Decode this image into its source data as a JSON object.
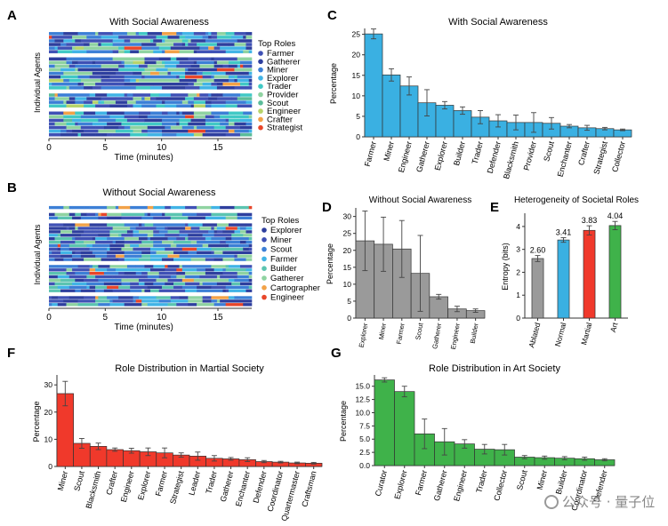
{
  "colors": {
    "social": "#3ab0e2",
    "without": "#9a9a9a",
    "ablated": "#9a9a9a",
    "normal": "#3ab0e2",
    "martial": "#f0392b",
    "art": "#3fb24a"
  },
  "watermark": "公众号 · 量子位",
  "heatmaps": [
    {
      "letter": "A",
      "title": "With Social Awareness",
      "ylabel": "Individual Agents",
      "xlabel": "Time (minutes)",
      "xticks": [
        "0",
        "5",
        "10",
        "15"
      ],
      "legend_title": "Top Roles",
      "roles": [
        {
          "name": "Farmer",
          "color": "#3f51b5"
        },
        {
          "name": "Gatherer",
          "color": "#2e3f9e"
        },
        {
          "name": "Miner",
          "color": "#3c7fd6"
        },
        {
          "name": "Explorer",
          "color": "#41b4e6"
        },
        {
          "name": "Trader",
          "color": "#41c9c5"
        },
        {
          "name": "Provider",
          "color": "#8fd3a1"
        },
        {
          "name": "Scout",
          "color": "#5bbd9a"
        },
        {
          "name": "Engineer",
          "color": "#b7d46a"
        },
        {
          "name": "Crafter",
          "color": "#f2a248"
        },
        {
          "name": "Strategist",
          "color": "#e8462a"
        }
      ]
    },
    {
      "letter": "B",
      "title": "Without Social Awareness",
      "ylabel": "Individual Agents",
      "xlabel": "Time (minutes)",
      "xticks": [
        "0",
        "5",
        "10",
        "15"
      ],
      "legend_title": "Top Roles",
      "roles": [
        {
          "name": "Explorer",
          "color": "#2e3f9e"
        },
        {
          "name": "Miner",
          "color": "#3f51b5"
        },
        {
          "name": "Scout",
          "color": "#3c7fd6"
        },
        {
          "name": "Farmer",
          "color": "#41b4e6"
        },
        {
          "name": "Builder",
          "color": "#5bc4b0"
        },
        {
          "name": "Gatherer",
          "color": "#8fd3a1"
        },
        {
          "name": "Cartographer",
          "color": "#f2a248"
        },
        {
          "name": "Engineer",
          "color": "#e8462a"
        }
      ]
    }
  ],
  "chart_data": [
    {
      "id": "C",
      "type": "bar",
      "title": "With Social Awareness",
      "ylabel": "Percentage",
      "ylim": [
        0,
        26
      ],
      "yticks": [
        0,
        5,
        10,
        15,
        20,
        25
      ],
      "categories": [
        "Farmer",
        "Miner",
        "Engineer",
        "Gatherer",
        "Explorer",
        "Builder",
        "Trader",
        "Defender",
        "Blacksmith",
        "Provider",
        "Scout",
        "Enchanter",
        "Crafter",
        "Strategist",
        "Collector"
      ],
      "values": [
        25.1,
        15.1,
        12.4,
        8.3,
        7.7,
        6.4,
        4.8,
        3.9,
        3.5,
        3.5,
        3.3,
        2.6,
        2.2,
        2.0,
        1.7
      ],
      "errors": [
        1.2,
        1.5,
        2.2,
        3.2,
        0.9,
        0.9,
        1.6,
        1.5,
        1.8,
        2.4,
        1.4,
        0.4,
        0.6,
        0.3,
        0.2
      ],
      "color": "#3ab0e2"
    },
    {
      "id": "D",
      "type": "bar",
      "title": "Without Social Awareness",
      "ylabel": "Percentage",
      "ylim": [
        0,
        32
      ],
      "yticks": [
        0,
        5,
        10,
        15,
        20,
        25,
        30
      ],
      "categories": [
        "Explorer",
        "Miner",
        "Farmer",
        "Scout",
        "Gatherer",
        "Engineer",
        "Builder"
      ],
      "values": [
        22.8,
        21.8,
        20.4,
        13.2,
        6.3,
        2.7,
        2.2
      ],
      "errors": [
        8.8,
        8.0,
        8.4,
        11.2,
        0.7,
        0.8,
        0.5
      ],
      "color": "#9a9a9a"
    },
    {
      "id": "E",
      "type": "bar",
      "title": "Heterogeneity of Societal Roles",
      "ylabel": "Entropy (bits)",
      "ylim": [
        0,
        4.5
      ],
      "yticks": [
        0,
        1,
        2,
        3,
        4
      ],
      "categories": [
        "Ablated",
        "Normal",
        "Martial",
        "Art"
      ],
      "values": [
        2.6,
        3.41,
        3.83,
        4.04
      ],
      "value_labels": [
        "2.60",
        "3.41",
        "3.83",
        "4.04"
      ],
      "errors": [
        0.13,
        0.1,
        0.2,
        0.18
      ],
      "colors": [
        "#9a9a9a",
        "#3ab0e2",
        "#f0392b",
        "#3fb24a"
      ]
    },
    {
      "id": "F",
      "type": "bar",
      "title": "Role Distribution in Martial Society",
      "ylabel": "Percentage",
      "ylim": [
        0,
        33
      ],
      "yticks": [
        0,
        10,
        20,
        30
      ],
      "categories": [
        "Miner",
        "Scout",
        "Blacksmith",
        "Crafter",
        "Engineer",
        "Explorer",
        "Farmer",
        "Strategist",
        "Leader",
        "Trader",
        "Gatherer",
        "Enchanter",
        "Defender",
        "Coordinator",
        "Quartermaster",
        "Craftsman"
      ],
      "values": [
        26.8,
        8.5,
        7.4,
        6.2,
        5.8,
        5.4,
        5.0,
        4.2,
        3.8,
        3.0,
        2.8,
        2.5,
        1.8,
        1.6,
        1.3,
        1.2
      ],
      "errors": [
        4.5,
        1.8,
        1.2,
        0.6,
        0.9,
        1.4,
        1.8,
        0.8,
        1.5,
        1.0,
        0.5,
        0.7,
        0.4,
        0.3,
        0.3,
        0.3
      ],
      "color": "#f0392b"
    },
    {
      "id": "G",
      "type": "bar",
      "title": "Role Distribution in Art Society",
      "ylabel": "Percentage",
      "ylim": [
        0,
        16.8
      ],
      "yticks": [
        0.0,
        2.5,
        5.0,
        7.5,
        10.0,
        12.5,
        15.0
      ],
      "tick_format": "1dp",
      "categories": [
        "Curator",
        "Explorer",
        "Farmer",
        "Gatherer",
        "Engineer",
        "Trader",
        "Collector",
        "Scout",
        "Miner",
        "Builder",
        "Coordinator",
        "Defender"
      ],
      "values": [
        16.2,
        14.0,
        6.0,
        4.5,
        4.1,
        3.1,
        3.0,
        1.6,
        1.5,
        1.4,
        1.3,
        1.1
      ],
      "errors": [
        0.4,
        1.0,
        2.8,
        2.5,
        0.8,
        0.9,
        1.0,
        0.3,
        0.3,
        0.3,
        0.3,
        0.2
      ],
      "color": "#3fb24a"
    }
  ]
}
